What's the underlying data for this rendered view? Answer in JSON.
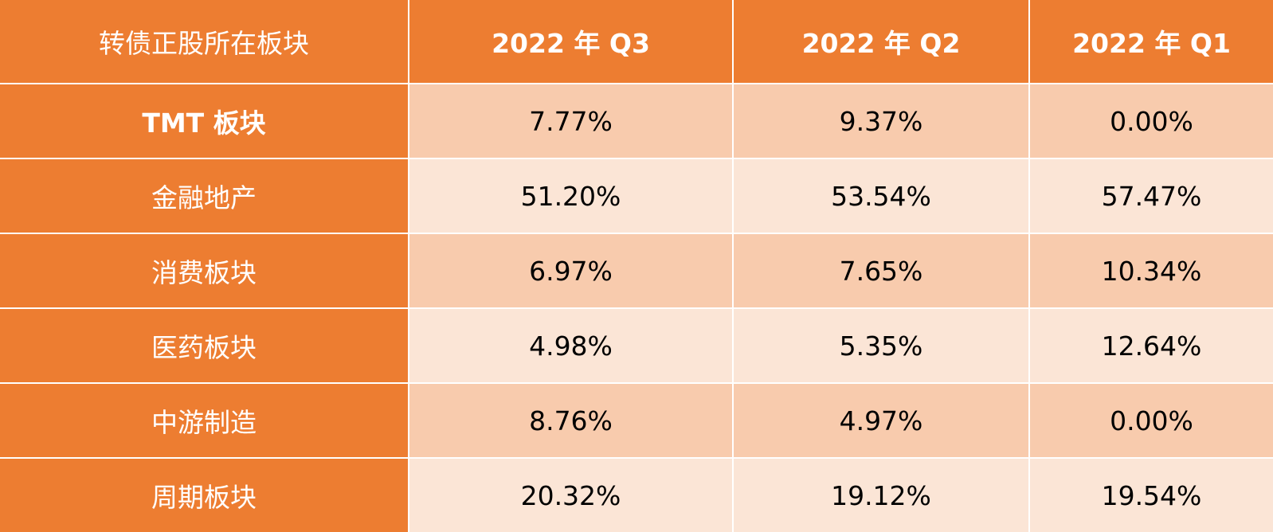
{
  "table": {
    "header": [
      "转债正股所在板块",
      "2022 年 Q3",
      "2022 年 Q2",
      "2022 年 Q1"
    ],
    "rows": [
      [
        "TMT 板块",
        "7.77%",
        "9.37%",
        "0.00%"
      ],
      [
        "金融地产",
        "51.20%",
        "53.54%",
        "57.47%"
      ],
      [
        "消费板块",
        "6.97%",
        "7.65%",
        "10.34%"
      ],
      [
        "医药板块",
        "4.98%",
        "5.35%",
        "12.64%"
      ],
      [
        "中游制造",
        "8.76%",
        "4.97%",
        "0.00%"
      ],
      [
        "周期板块",
        "20.32%",
        "19.12%",
        "19.54%"
      ]
    ]
  }
}
